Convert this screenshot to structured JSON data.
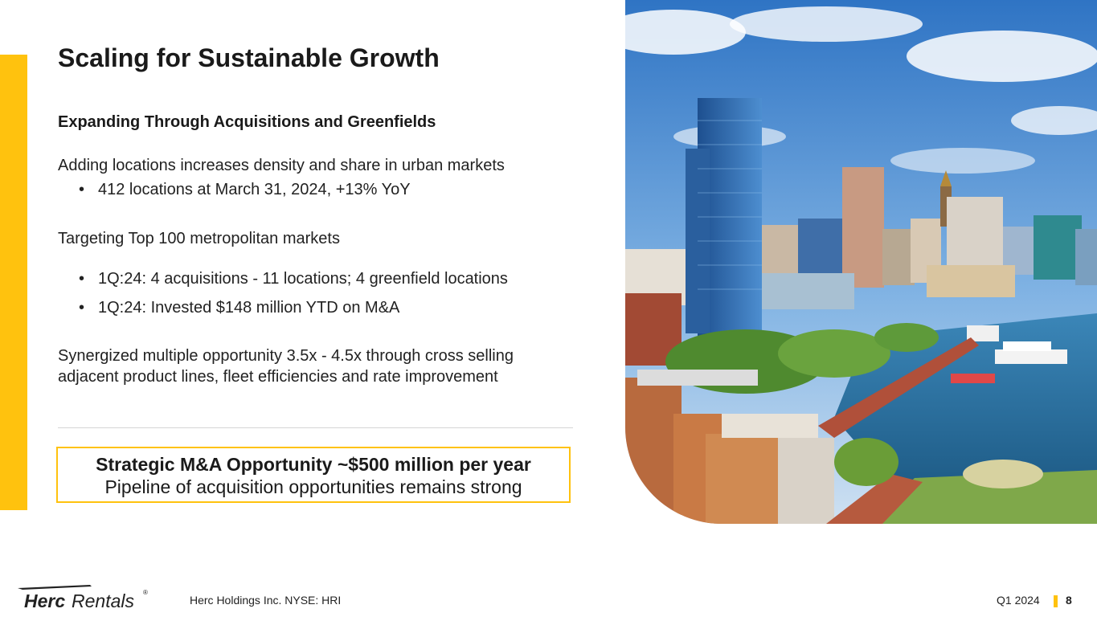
{
  "slide": {
    "title": "Scaling for Sustainable Growth",
    "subtitle": "Expanding Through Acquisitions and Greenfields",
    "para1": "Adding locations increases density and share in urban markets",
    "bullets1": [
      "412 locations at March 31, 2024, +13% YoY"
    ],
    "para2": "Targeting Top 100 metropolitan markets",
    "bullets2": [
      "1Q:24: 4 acquisitions - 11 locations; 4 greenfield locations",
      "1Q:24: Invested $148 million YTD on M&A"
    ],
    "para3_line1": "Synergized multiple opportunity 3.5x - 4.5x through cross selling",
    "para3_line2": "adjacent product lines, fleet efficiencies and rate improvement",
    "bullet_glyph": "•"
  },
  "callout": {
    "line1": "Strategic M&A Opportunity ~$500 million per year",
    "line2": "Pipeline of acquisition opportunities remains strong"
  },
  "footer": {
    "logo_text_bold": "Herc",
    "logo_text_light": "Rentals",
    "logo_registered": "®",
    "company": "Herc Holdings Inc.  NYSE: HRI",
    "quarter": "Q1 2024",
    "page": "8"
  },
  "colors": {
    "accent": "#FFC20E",
    "text": "#222222",
    "divider": "#D6D6D6"
  },
  "icons": {
    "logo": "herc-rentals-logo",
    "photo": "city-harbor-skyline-photo"
  }
}
